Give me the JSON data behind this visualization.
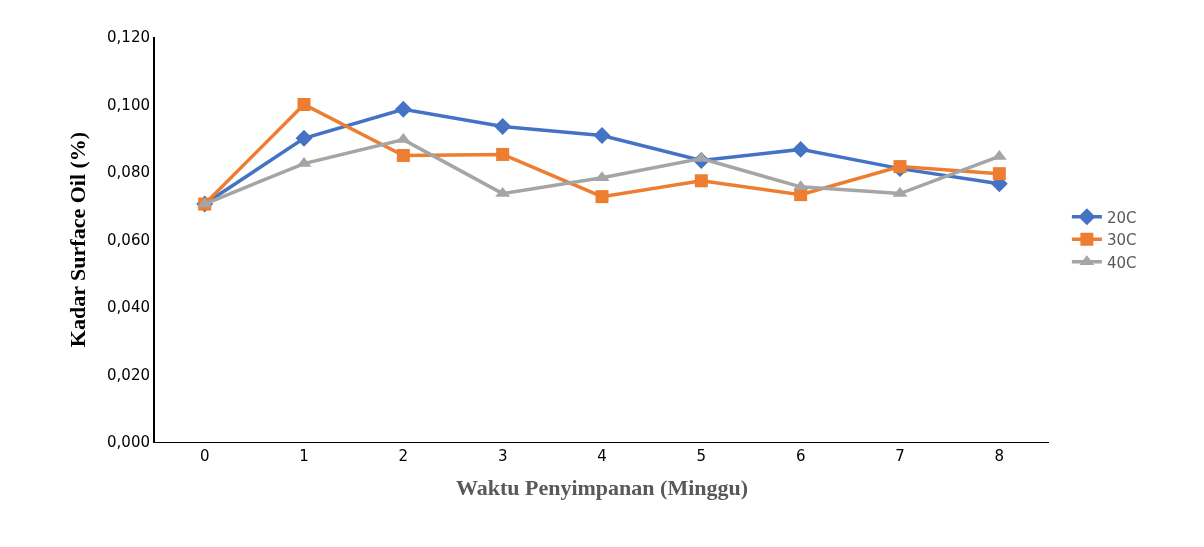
{
  "chart_data": {
    "type": "line",
    "xlabel": "Waktu Penyimpanan (Minggu)",
    "ylabel": "Kadar Surface Oil (%)",
    "categories": [
      "0",
      "1",
      "2",
      "3",
      "4",
      "5",
      "6",
      "7",
      "8"
    ],
    "series": [
      {
        "name": "20C",
        "color": "#4472c4",
        "marker": "diamond",
        "values": [
          0.0705,
          0.09,
          0.0986,
          0.0935,
          0.0908,
          0.0834,
          0.0867,
          0.081,
          0.0765
        ]
      },
      {
        "name": "30C",
        "color": "#ed7d31",
        "marker": "square",
        "values": [
          0.0705,
          0.1,
          0.0849,
          0.0852,
          0.0727,
          0.0774,
          0.0733,
          0.0816,
          0.0795
        ]
      },
      {
        "name": "40C",
        "color": "#a5a5a5",
        "marker": "triangle",
        "values": [
          0.0705,
          0.0825,
          0.0896,
          0.0736,
          0.0783,
          0.084,
          0.0756,
          0.0736,
          0.0846
        ]
      }
    ],
    "ylim": [
      0,
      0.12
    ],
    "yticks": [
      {
        "value": 0,
        "label": "0,000"
      },
      {
        "value": 0.02,
        "label": "0,020"
      },
      {
        "value": 0.04,
        "label": "0,040"
      },
      {
        "value": 0.06,
        "label": "0,060"
      },
      {
        "value": 0.08,
        "label": "0,080"
      },
      {
        "value": 0.1,
        "label": "0,100"
      },
      {
        "value": 0.12,
        "label": "0,120"
      }
    ],
    "legend": "right",
    "line_style": "solid"
  }
}
